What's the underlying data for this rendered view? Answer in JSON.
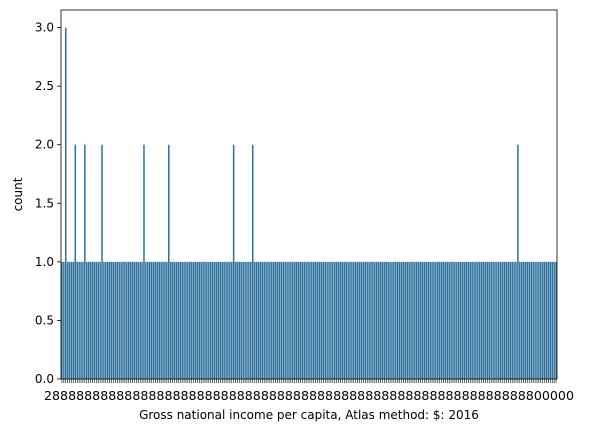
{
  "chart_data": {
    "type": "bar",
    "xlabel": "Gross national income per capita, Atlas method: $: 2016",
    "ylabel": "count",
    "ylim": [
      0,
      3.15
    ],
    "yticks": [
      0.0,
      0.5,
      1.0,
      1.5,
      2.0,
      2.5,
      3.0
    ],
    "ytick_labels": [
      "0.0",
      "0.5",
      "1.0",
      "1.5",
      "2.0",
      "2.5",
      "3.0"
    ],
    "x_tick_labels_note": "x tick labels overlap and are illegible; first reads \"2\"-something, last ends in \"000\"",
    "x_tick_first_label": "2",
    "x_tick_last_label": "00000",
    "bar_color": "#31739e",
    "grid": false,
    "values": [
      1,
      1,
      3,
      1,
      1,
      1,
      1,
      2,
      1,
      1,
      1,
      1,
      2,
      1,
      1,
      1,
      1,
      1,
      1,
      1,
      1,
      2,
      1,
      1,
      1,
      1,
      1,
      1,
      1,
      1,
      1,
      1,
      1,
      1,
      1,
      1,
      1,
      1,
      1,
      1,
      1,
      1,
      1,
      2,
      1,
      1,
      1,
      1,
      1,
      1,
      1,
      1,
      1,
      1,
      1,
      1,
      2,
      1,
      1,
      1,
      1,
      1,
      1,
      1,
      1,
      1,
      1,
      1,
      1,
      1,
      1,
      1,
      1,
      1,
      1,
      1,
      1,
      1,
      1,
      1,
      1,
      1,
      1,
      1,
      1,
      1,
      1,
      1,
      1,
      1,
      2,
      1,
      1,
      1,
      1,
      1,
      1,
      1,
      1,
      1,
      2,
      1,
      1,
      1,
      1,
      1,
      1,
      1,
      1,
      1,
      1,
      1,
      1,
      1,
      1,
      1,
      1,
      1,
      1,
      1,
      1,
      1,
      1,
      1,
      1,
      1,
      1,
      1,
      1,
      1,
      1,
      1,
      1,
      1,
      1,
      1,
      1,
      1,
      1,
      1,
      1,
      1,
      1,
      1,
      1,
      1,
      1,
      1,
      1,
      1,
      1,
      1,
      1,
      1,
      1,
      1,
      1,
      1,
      1,
      1,
      1,
      1,
      1,
      1,
      1,
      1,
      1,
      1,
      1,
      1,
      1,
      1,
      1,
      1,
      1,
      1,
      1,
      1,
      1,
      1,
      1,
      1,
      1,
      1,
      1,
      1,
      1,
      1,
      1,
      1,
      1,
      1,
      1,
      1,
      1,
      1,
      1,
      1,
      1,
      1,
      1,
      1,
      1,
      1,
      1,
      1,
      1,
      1,
      1,
      1,
      1,
      1,
      1,
      1,
      1,
      1,
      1,
      1,
      1,
      1,
      1,
      1,
      1,
      1,
      1,
      1,
      1,
      1,
      1,
      1,
      1,
      1,
      1,
      1,
      1,
      1,
      1,
      1,
      1,
      2,
      1,
      1,
      1,
      1,
      1,
      1,
      1,
      1,
      1,
      1,
      1,
      1,
      1,
      1,
      1,
      1,
      1,
      1,
      1,
      1
    ]
  }
}
